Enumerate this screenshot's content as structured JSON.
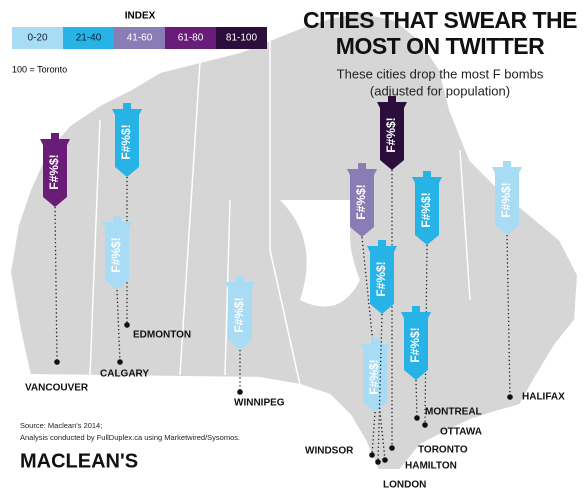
{
  "title": [
    "CITIES THAT SWEAR THE",
    "MOST ON TWITTER"
  ],
  "subtitle": [
    "These cities drop the most F bombs",
    "(adjusted for population)"
  ],
  "legend": {
    "title": "INDEX",
    "bins": [
      {
        "label": "0-20",
        "color": "#a8dcf4"
      },
      {
        "label": "21-40",
        "color": "#27b3e6"
      },
      {
        "label": "41-60",
        "color": "#8a7cb4"
      },
      {
        "label": "61-80",
        "color": "#6a1d78"
      },
      {
        "label": "81-100",
        "color": "#2b0e3b"
      }
    ],
    "note": "100 = Toronto"
  },
  "bomb_label": "F#%$!",
  "cities": [
    {
      "name": "VANCOUVER",
      "bin": 3
    },
    {
      "name": "EDMONTON",
      "bin": 1
    },
    {
      "name": "CALGARY",
      "bin": 0
    },
    {
      "name": "WINNIPEG",
      "bin": 0
    },
    {
      "name": "TORONTO",
      "bin": 4
    },
    {
      "name": "HAMILTON",
      "bin": 2
    },
    {
      "name": "WINDSOR",
      "bin": 0
    },
    {
      "name": "LONDON",
      "bin": 1
    },
    {
      "name": "OTTAWA",
      "bin": 1
    },
    {
      "name": "MONTREAL",
      "bin": 1
    },
    {
      "name": "HALIFAX",
      "bin": 0
    }
  ],
  "source": [
    "Source: Maclean's 2014;",
    "Analysis conducted by FullDuplex.ca using Marketwired/Sysomos."
  ],
  "brand": "MACLEAN'S"
}
